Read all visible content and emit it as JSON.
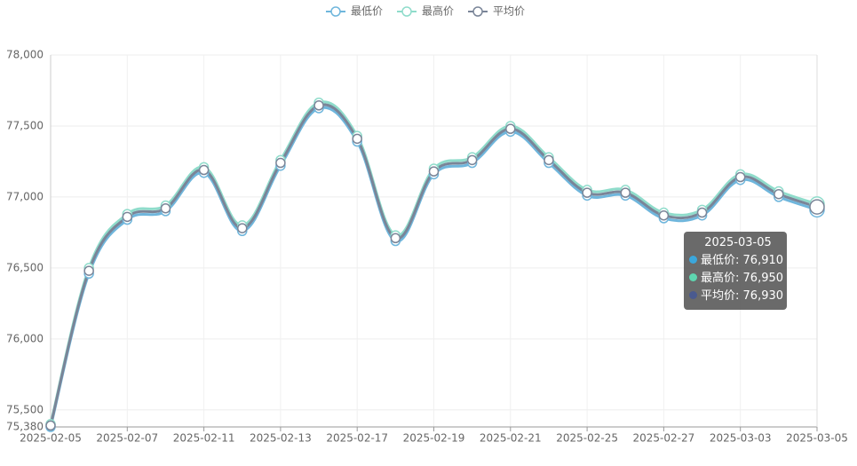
{
  "chart_data": {
    "type": "line",
    "categories": [
      "2025-02-05",
      null,
      "2025-02-07",
      null,
      "2025-02-11",
      null,
      "2025-02-13",
      null,
      "2025-02-17",
      null,
      "2025-02-19",
      null,
      "2025-02-21",
      null,
      "2025-02-25",
      null,
      "2025-02-27",
      null,
      "2025-03-03",
      null,
      "2025-03-05"
    ],
    "series": [
      {
        "name": "最低价",
        "color": "#6fb6dc",
        "values": [
          75380,
          76460,
          76840,
          76900,
          77170,
          76760,
          77220,
          77625,
          77390,
          76690,
          77160,
          77240,
          77460,
          77240,
          77010,
          77010,
          76850,
          76870,
          77120,
          77000,
          76910
        ]
      },
      {
        "name": "最高价",
        "color": "#8fdccb",
        "values": [
          75400,
          76500,
          76880,
          76940,
          77210,
          76800,
          77260,
          77665,
          77430,
          76730,
          77200,
          77280,
          77500,
          77280,
          77050,
          77050,
          76890,
          76910,
          77160,
          77040,
          76950
        ]
      },
      {
        "name": "平均价",
        "color": "#7a8598",
        "values": [
          75390,
          76480,
          76860,
          76920,
          77190,
          76780,
          77240,
          77645,
          77410,
          76710,
          77180,
          77260,
          77480,
          77260,
          77030,
          77030,
          76870,
          76890,
          77140,
          77020,
          76930
        ]
      }
    ],
    "ylim": [
      75380,
      78000
    ],
    "yticks": [
      {
        "value": 75380,
        "label": "75,380"
      },
      {
        "value": 75500,
        "label": "75,500"
      },
      {
        "value": 76000,
        "label": "76,000"
      },
      {
        "value": 76500,
        "label": "76,500"
      },
      {
        "value": 77000,
        "label": "77,000"
      },
      {
        "value": 77500,
        "label": "77,500"
      },
      {
        "value": 78000,
        "label": "78,000"
      }
    ],
    "grid": true,
    "legend": "top",
    "tooltip": {
      "title": "2025-03-05",
      "items": [
        {
          "name": "最低价",
          "value": 76910,
          "label": "76,910",
          "color": "#3ba7dc"
        },
        {
          "name": "最高价",
          "value": 76950,
          "label": "76,950",
          "color": "#5ed6b0"
        },
        {
          "name": "平均价",
          "value": 76930,
          "label": "76,930",
          "color": "#4a5a8f"
        }
      ]
    }
  }
}
